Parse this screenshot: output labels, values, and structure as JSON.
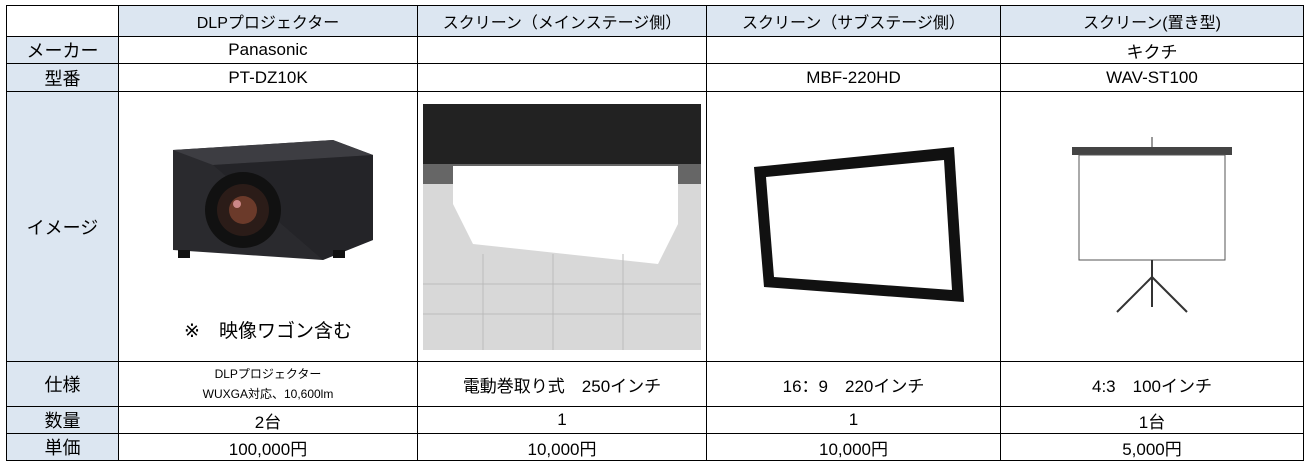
{
  "table": {
    "header": [
      "DLPプロジェクター",
      "スクリーン（メインステージ側）",
      "スクリーン（サブステージ側）",
      "スクリーン(置き型)"
    ],
    "rows": [
      {
        "label": "メーカー",
        "cells": [
          "Panasonic",
          null,
          null,
          "キクチ"
        ]
      },
      {
        "label": "型番",
        "cells": [
          "PT-DZ10K",
          null,
          "MBF-220HD",
          "WAV-ST100"
        ]
      },
      {
        "label": "イメージ",
        "note": "※　映像ワゴン含む"
      },
      {
        "label": "仕様",
        "cells": [
          [
            "DLPプロジェクター",
            "WUXGA対応、10,600lm"
          ],
          "電動巻取り式　250インチ",
          "16：9　220インチ",
          "4:3　100インチ"
        ]
      },
      {
        "label": "数量",
        "cells": [
          "2台",
          "1",
          "1",
          "1台"
        ]
      },
      {
        "label": "単価",
        "cells": [
          "100,000円",
          "10,000円",
          "10,000円",
          "5,000円"
        ]
      }
    ]
  }
}
